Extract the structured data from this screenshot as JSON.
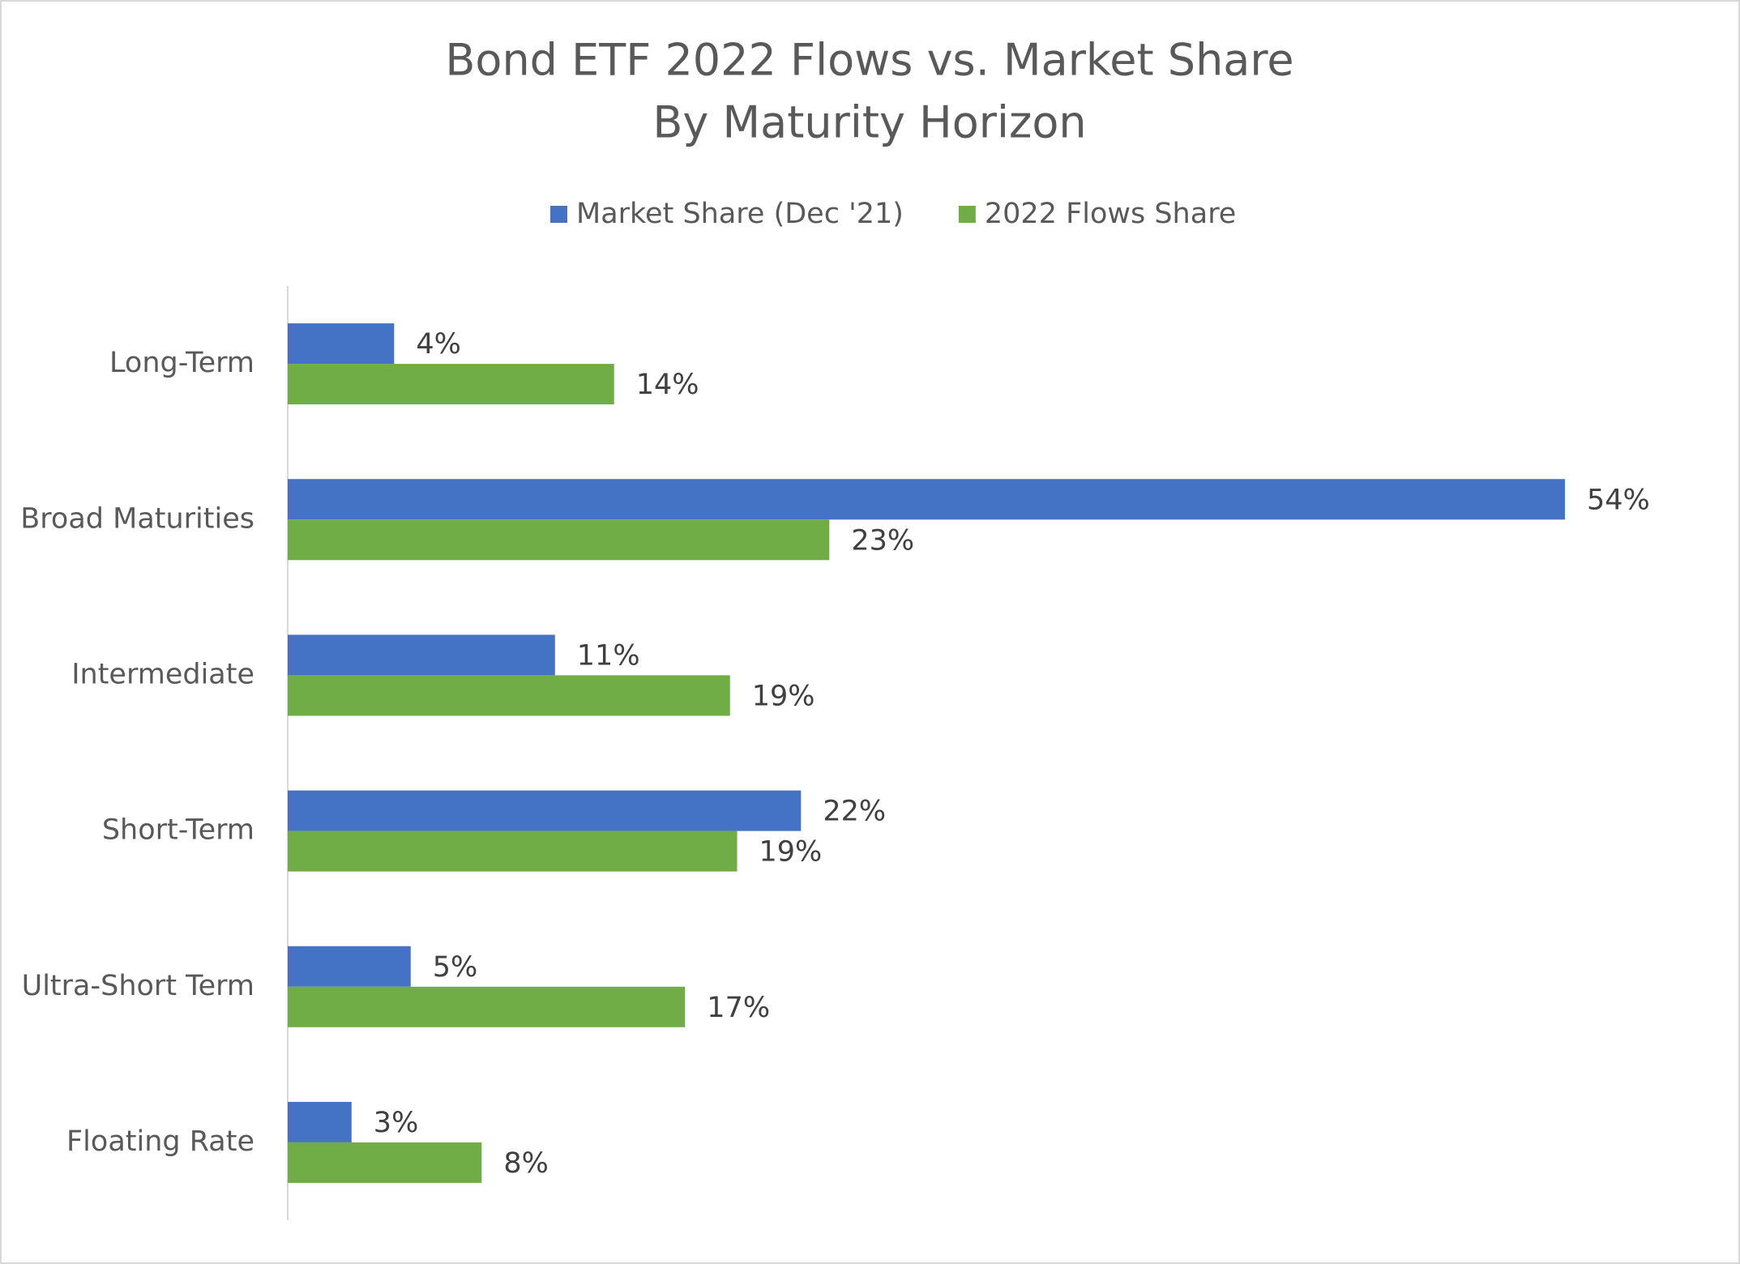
{
  "chart_data": {
    "type": "bar",
    "orientation": "horizontal",
    "title": "Bond ETF 2022 Flows vs. Market Share",
    "subtitle": "By Maturity Horizon",
    "categories": [
      "Long-Term",
      "Broad Maturities",
      "Intermediate",
      "Short-Term",
      "Ultra-Short Term",
      "Floating Rate"
    ],
    "series": [
      {
        "name": "Market Share (Dec '21)",
        "color": "#4472c4",
        "values": [
          4.5,
          54,
          11.3,
          21.7,
          5.2,
          2.7
        ],
        "value_labels": [
          "4%",
          "54%",
          "11%",
          "22%",
          "5%",
          "3%"
        ]
      },
      {
        "name": "2022 Flows Share",
        "color": "#70ad47",
        "values": [
          13.8,
          22.9,
          18.7,
          19.0,
          16.8,
          8.2
        ],
        "value_labels": [
          "14%",
          "23%",
          "19%",
          "19%",
          "17%",
          "8%"
        ]
      }
    ],
    "legend": "top"
  }
}
